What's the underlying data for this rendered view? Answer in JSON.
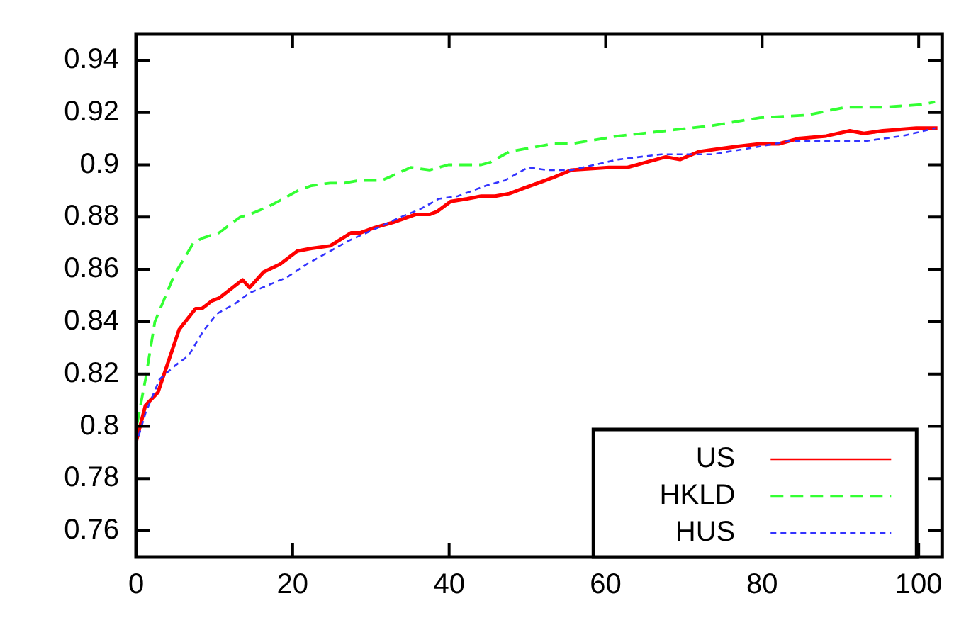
{
  "chart_data": {
    "type": "line",
    "xlim": [
      0,
      103
    ],
    "ylim": [
      0.75,
      0.95
    ],
    "xticks": [
      0,
      20,
      40,
      60,
      80,
      100
    ],
    "yticks": [
      0.76,
      0.78,
      0.8,
      0.82,
      0.84,
      0.86,
      0.88,
      0.9,
      0.92,
      0.94
    ],
    "grid": false,
    "legend": "bottom right",
    "marker": "none",
    "series": [
      {
        "name": "US",
        "color": "#ff0000",
        "line_style": "solid",
        "x": [
          0,
          1.2,
          2.8,
          5.5,
          7.6,
          8.4,
          9.7,
          10.6,
          13.6,
          14.5,
          16.3,
          18.4,
          20.6,
          22.4,
          24.8,
          27.5,
          28.7,
          30.5,
          32.9,
          35.7,
          37.5,
          38.4,
          40.2,
          42.3,
          44.1,
          45.9,
          47.7,
          49.5,
          53.2,
          55.6,
          60.4,
          62.8,
          67.7,
          69.5,
          71.9,
          76.7,
          79.7,
          82.1,
          84.6,
          88.2,
          91.2,
          93,
          95.4,
          99.7,
          102.4
        ],
        "values": [
          0.794,
          0.808,
          0.813,
          0.837,
          0.845,
          0.845,
          0.848,
          0.849,
          0.856,
          0.853,
          0.859,
          0.862,
          0.867,
          0.868,
          0.869,
          0.874,
          0.874,
          0.876,
          0.878,
          0.881,
          0.881,
          0.882,
          0.886,
          0.887,
          0.888,
          0.888,
          0.889,
          0.891,
          0.895,
          0.898,
          0.899,
          0.899,
          0.903,
          0.902,
          0.905,
          0.907,
          0.908,
          0.908,
          0.91,
          0.911,
          0.913,
          0.912,
          0.913,
          0.914,
          0.914
        ]
      },
      {
        "name": "HKLD",
        "color": "#33ff33",
        "line_style": "dashed",
        "x": [
          0,
          1.2,
          2.4,
          4.9,
          7.3,
          8.5,
          10.6,
          13.3,
          14.5,
          16.9,
          18.8,
          20.6,
          22.4,
          24.8,
          26.6,
          28.4,
          31.4,
          32.9,
          35.1,
          37.5,
          39.9,
          44.1,
          45.3,
          47.7,
          49.5,
          53.2,
          55.6,
          61.6,
          67.7,
          73.7,
          79.7,
          85.8,
          90.6,
          95.4,
          100.3,
          102.1
        ],
        "values": [
          0.799,
          0.818,
          0.84,
          0.858,
          0.87,
          0.872,
          0.874,
          0.88,
          0.881,
          0.884,
          0.887,
          0.89,
          0.892,
          0.893,
          0.893,
          0.894,
          0.894,
          0.896,
          0.899,
          0.898,
          0.9,
          0.9,
          0.901,
          0.905,
          0.906,
          0.908,
          0.908,
          0.911,
          0.913,
          0.915,
          0.918,
          0.919,
          0.922,
          0.922,
          0.923,
          0.924
        ]
      },
      {
        "name": "HUS",
        "color": "#3333ff",
        "line_style": "dotted",
        "x": [
          0,
          1.2,
          3,
          4.9,
          6.7,
          8.5,
          10.3,
          12.7,
          14.5,
          16.9,
          19.3,
          21.8,
          24.8,
          27.2,
          30.2,
          33.8,
          36.3,
          38.7,
          41.1,
          44.7,
          47.1,
          50.1,
          52.5,
          55.6,
          61.6,
          67.1,
          73.7,
          79.7,
          83.4,
          88.8,
          93,
          97.9,
          102.1
        ],
        "values": [
          0.793,
          0.805,
          0.818,
          0.823,
          0.827,
          0.836,
          0.843,
          0.847,
          0.851,
          0.854,
          0.857,
          0.862,
          0.867,
          0.871,
          0.875,
          0.88,
          0.883,
          0.887,
          0.888,
          0.892,
          0.894,
          0.899,
          0.898,
          0.898,
          0.902,
          0.904,
          0.904,
          0.907,
          0.909,
          0.909,
          0.909,
          0.911,
          0.914
        ]
      }
    ]
  }
}
